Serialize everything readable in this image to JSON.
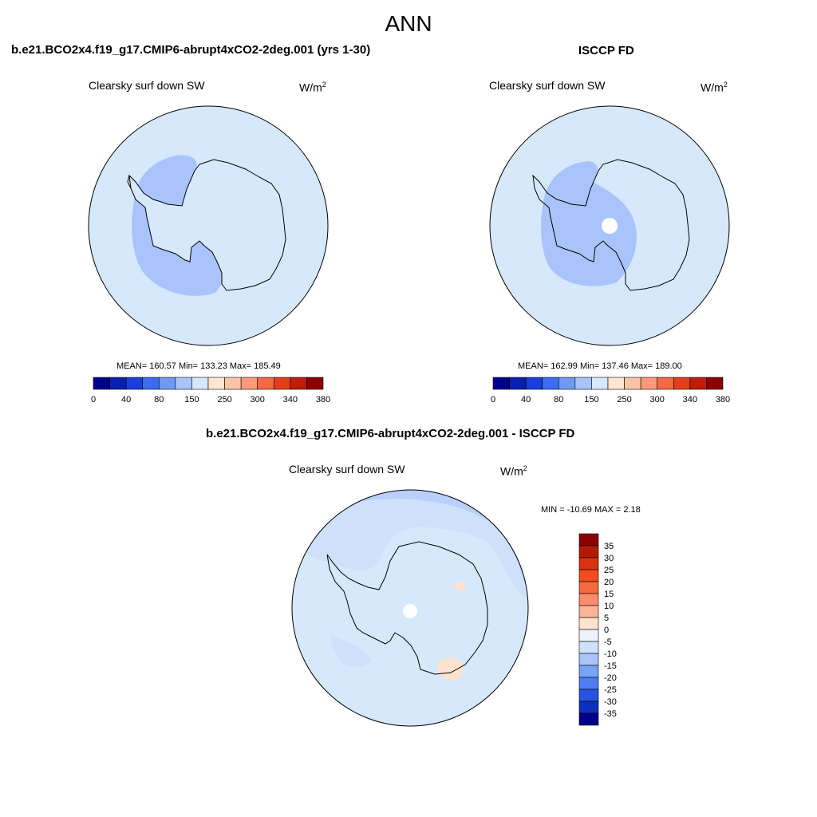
{
  "main_title": "ANN",
  "panels": [
    {
      "title": "b.e21.BCO2x4.f19_g17.CMIP6-abrupt4xCO2-2deg.001 (yrs 1-30)",
      "variable": "Clearsky surf down SW",
      "units": "W/m",
      "units_exp": "2",
      "stats": "MEAN= 160.57  Min= 133.23  Max= 185.49"
    },
    {
      "title": "ISCCP FD",
      "variable": "Clearsky surf down SW",
      "units": "W/m",
      "units_exp": "2",
      "stats": "MEAN= 162.99  Min= 137.46  Max= 189.00"
    },
    {
      "title": "b.e21.BCO2x4.f19_g17.CMIP6-abrupt4xCO2-2deg.001 - ISCCP FD",
      "variable": "Clearsky surf down SW",
      "units": "W/m",
      "units_exp": "2",
      "stats": "MIN = -10.69 MAX =   2.18"
    }
  ],
  "horizontal_colorbar": {
    "labels": [
      "0",
      "40",
      "80",
      "150",
      "250",
      "300",
      "340",
      "380"
    ],
    "colors": [
      "#00008b",
      "#0a1fb0",
      "#1a3fdc",
      "#3b6cf2",
      "#6e9af5",
      "#a9c4fb",
      "#d6e8fc",
      "#fde6d4",
      "#fcc3a8",
      "#fa9a78",
      "#f46a44",
      "#e33e1a",
      "#c01c07",
      "#8b0000"
    ]
  },
  "vertical_colorbar": {
    "labels": [
      "35",
      "30",
      "25",
      "20",
      "15",
      "10",
      "5",
      "0",
      "-5",
      "-10",
      "-15",
      "-20",
      "-25",
      "-30",
      "-35"
    ],
    "colors": [
      "#8b0000",
      "#b31a06",
      "#d9330f",
      "#f04d1a",
      "#f8693f",
      "#fa8e6c",
      "#fcb497",
      "#fde3cf",
      "#eef3fb",
      "#cfe0fa",
      "#a9c4fb",
      "#7aa3f6",
      "#4e7cf2",
      "#2653e2",
      "#0d2fbf",
      "#00008b"
    ]
  }
}
